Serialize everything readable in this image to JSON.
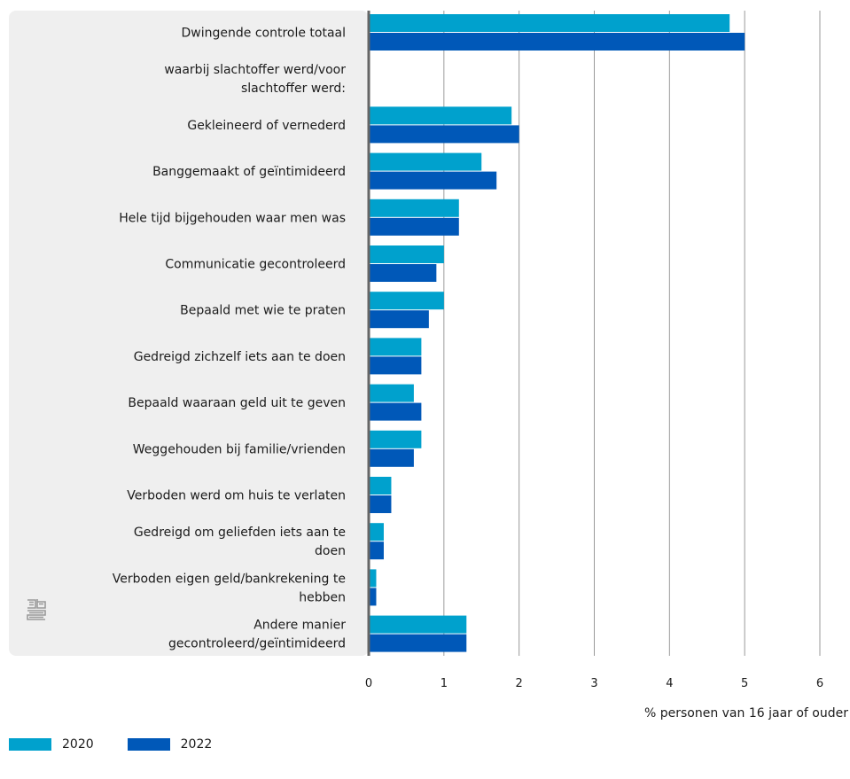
{
  "chart_data": {
    "type": "bar",
    "orientation": "horizontal",
    "categories": [
      [
        "Dwingende controle totaal"
      ],
      [
        "waarbij slachtoffer werd/voor",
        "slachtoffer werd:"
      ],
      [
        "Gekleineerd of vernederd"
      ],
      [
        "Banggemaakt of geïntimideerd"
      ],
      [
        "Hele tijd bijgehouden waar men was"
      ],
      [
        "Communicatie gecontroleerd"
      ],
      [
        "Bepaald met wie te praten"
      ],
      [
        "Gedreigd zichzelf iets aan te doen"
      ],
      [
        "Bepaald waaraan geld uit te geven"
      ],
      [
        "Weggehouden bij familie/vrienden"
      ],
      [
        "Verboden werd om huis te verlaten"
      ],
      [
        "Gedreigd om geliefden iets aan te",
        "doen"
      ],
      [
        "Verboden eigen geld/bankrekening te",
        "hebben"
      ],
      [
        "Andere manier",
        "gecontroleerd/geïntimideerd"
      ]
    ],
    "series": [
      {
        "name": "2020",
        "color": "#00a1cd",
        "values": [
          4.8,
          null,
          1.9,
          1.5,
          1.2,
          1.0,
          1.0,
          0.7,
          0.6,
          0.7,
          0.3,
          0.2,
          0.1,
          1.3
        ]
      },
      {
        "name": "2022",
        "color": "#0058b8",
        "values": [
          5.0,
          null,
          2.0,
          1.7,
          1.2,
          0.9,
          0.8,
          0.7,
          0.7,
          0.6,
          0.3,
          0.2,
          0.1,
          1.3
        ]
      }
    ],
    "xlabel": "% personen van 16 jaar of ouder",
    "xlim": [
      0,
      6
    ],
    "xticks": [
      "0",
      "1",
      "2",
      "3",
      "4",
      "5",
      "6"
    ],
    "grid": true,
    "legend_position": "bottom-left"
  },
  "colors": {
    "label_panel": "#efefef",
    "axis": "#666666",
    "grid": "#9a9a9a"
  },
  "logo": {
    "icon": "cbs-logo-icon"
  }
}
